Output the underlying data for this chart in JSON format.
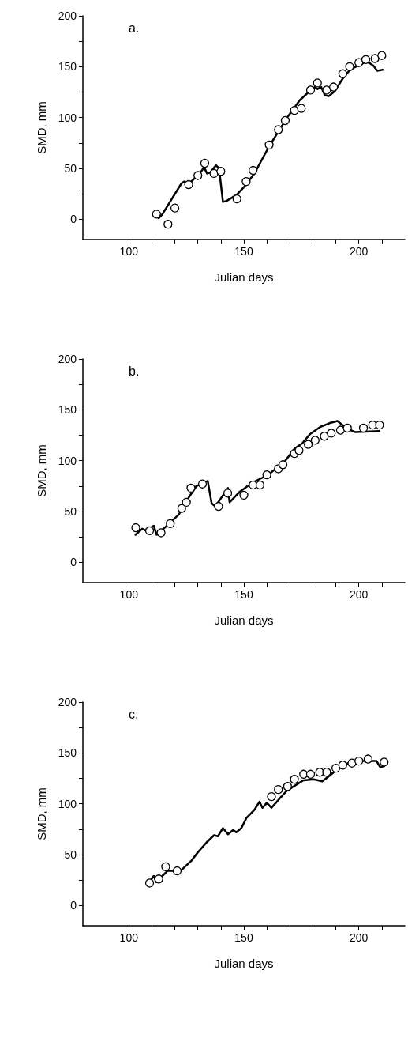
{
  "chart_data": [
    {
      "type": "scatter",
      "title": "a.",
      "xlabel": "Julian days",
      "ylabel": "SMD, mm",
      "xlim": [
        80,
        220
      ],
      "ylim": [
        -20,
        200
      ],
      "xticks": [
        100,
        {
          "value": 110,
          "label": null
        },
        {
          "value": 120,
          "label": null
        },
        {
          "value": 130,
          "label": null
        },
        {
          "value": 140,
          "label": null
        },
        150,
        {
          "value": 160,
          "label": null
        },
        {
          "value": 170,
          "label": null
        },
        {
          "value": 180,
          "label": null
        },
        {
          "value": 190,
          "label": null
        },
        200,
        {
          "value": 210,
          "label": null
        }
      ],
      "yticks": [
        0,
        {
          "value": 25,
          "label": null
        },
        50,
        {
          "value": 75,
          "label": null
        },
        100,
        {
          "value": 125,
          "label": null
        },
        150,
        {
          "value": 175,
          "label": null
        },
        200
      ],
      "grid": false,
      "series": [
        {
          "type": "line",
          "color": "#000000",
          "marker": "none",
          "line_style": "solid",
          "x": [
            113,
            114.6,
            122.8,
            123.9,
            126.1,
            130.5,
            132.7,
            134,
            135.4,
            137.9,
            139.2,
            140.9,
            142.5,
            146.9,
            150.2,
            154.6,
            158.9,
            161.1,
            165.5,
            168.8,
            174.3,
            178.7,
            180.9,
            182,
            183.6,
            185.2,
            186.9,
            189.6,
            192.9,
            196.2,
            199.5,
            203.3,
            205,
            206.3,
            208,
            210.4
          ],
          "values": [
            1,
            5,
            35,
            37,
            35,
            44,
            51,
            45,
            46,
            53,
            50,
            17,
            18,
            24,
            32,
            45,
            63,
            72,
            88,
            100,
            117,
            126,
            130,
            128,
            130,
            122,
            121,
            126,
            138,
            147,
            151,
            155,
            153,
            151,
            146,
            147
          ]
        },
        {
          "color": "#000000",
          "marker": "circle",
          "x": [
            112,
            117,
            120,
            126,
            130,
            133,
            137,
            140,
            147,
            151,
            154,
            161,
            165,
            168,
            172,
            175,
            179,
            182,
            186,
            189,
            193,
            196,
            200,
            203,
            207,
            210
          ],
          "values": [
            5,
            -5,
            11,
            34,
            43,
            55,
            45,
            47,
            20,
            37,
            48,
            73,
            88,
            97,
            107,
            109,
            127,
            134,
            127,
            130,
            143,
            150,
            154,
            157,
            158,
            161
          ]
        }
      ]
    },
    {
      "type": "scatter",
      "title": "b.",
      "xlabel": "Julian days",
      "ylabel": "SMD, mm",
      "xlim": [
        80,
        220
      ],
      "ylim": [
        -20,
        200
      ],
      "xticks": [
        100,
        {
          "value": 110,
          "label": null
        },
        {
          "value": 120,
          "label": null
        },
        {
          "value": 130,
          "label": null
        },
        {
          "value": 140,
          "label": null
        },
        150,
        {
          "value": 160,
          "label": null
        },
        {
          "value": 170,
          "label": null
        },
        {
          "value": 180,
          "label": null
        },
        {
          "value": 190,
          "label": null
        },
        200,
        {
          "value": 210,
          "label": null
        }
      ],
      "yticks": [
        0,
        {
          "value": 25,
          "label": null
        },
        50,
        {
          "value": 75,
          "label": null
        },
        100,
        {
          "value": 125,
          "label": null
        },
        150,
        {
          "value": 175,
          "label": null
        },
        200
      ],
      "grid": false,
      "series": [
        {
          "type": "line",
          "color": "#000000",
          "marker": "none",
          "line_style": "solid",
          "x": [
            102.9,
            105.8,
            107.5,
            110.8,
            112.1,
            114.6,
            118.4,
            121.7,
            126.1,
            129.4,
            134.3,
            136,
            137.6,
            143.1,
            143.8,
            148,
            153.5,
            157.9,
            161.1,
            167.7,
            172.1,
            175.4,
            178.7,
            183.1,
            187.4,
            190.7,
            192.9,
            195.6,
            198.4,
            209
          ],
          "values": [
            27,
            33,
            31,
            36,
            27,
            32,
            40,
            47,
            64,
            75,
            80,
            58,
            55,
            73,
            59,
            69,
            78,
            83,
            87,
            99,
            112,
            117,
            126,
            133,
            137,
            139,
            135,
            131,
            128,
            129
          ]
        },
        {
          "color": "#000000",
          "marker": "circle",
          "x": [
            103,
            109,
            114,
            118,
            123,
            125,
            127,
            132,
            139,
            143,
            150,
            154,
            157,
            160,
            165,
            167,
            172,
            174,
            178,
            181,
            185,
            188,
            192,
            195,
            202,
            206,
            209
          ],
          "values": [
            34,
            31,
            29,
            38,
            53,
            59,
            73,
            77,
            55,
            68,
            66,
            76,
            76,
            86,
            92,
            96,
            107,
            110,
            116,
            120,
            124,
            127,
            130,
            132,
            132,
            135,
            135
          ]
        }
      ]
    },
    {
      "type": "scatter",
      "title": "c.",
      "xlabel": "Julian days",
      "ylabel": "SMD, mm",
      "xlim": [
        80,
        220
      ],
      "ylim": [
        -20,
        200
      ],
      "xticks": [
        100,
        {
          "value": 110,
          "label": null
        },
        {
          "value": 120,
          "label": null
        },
        {
          "value": 130,
          "label": null
        },
        {
          "value": 140,
          "label": null
        },
        150,
        {
          "value": 160,
          "label": null
        },
        {
          "value": 170,
          "label": null
        },
        {
          "value": 180,
          "label": null
        },
        {
          "value": 190,
          "label": null
        },
        200,
        {
          "value": 210,
          "label": null
        }
      ],
      "yticks": [
        0,
        {
          "value": 25,
          "label": null
        },
        50,
        {
          "value": 75,
          "label": null
        },
        100,
        {
          "value": 125,
          "label": null
        },
        150,
        {
          "value": 175,
          "label": null
        },
        200
      ],
      "grid": false,
      "series": [
        {
          "type": "line",
          "color": "#000000",
          "marker": "none",
          "line_style": "solid",
          "x": [
            108.9,
            110.8,
            111.9,
            114.1,
            116.8,
            119,
            121.2,
            123.9,
            127.2,
            129.9,
            133.8,
            137,
            138.7,
            140.9,
            143.1,
            145.3,
            146.7,
            148.9,
            151.1,
            154.6,
            156.8,
            158.1,
            160,
            162,
            165.5,
            168.8,
            175.9,
            180.3,
            184.1,
            186.9,
            191.8,
            196.2,
            200.6,
            207.7,
            209.3,
            211
          ],
          "values": [
            23,
            29,
            23,
            28,
            34,
            34,
            31,
            37,
            44,
            52,
            62,
            69,
            68,
            76,
            70,
            74,
            72,
            76,
            86,
            94,
            102,
            96,
            101,
            96,
            105,
            113,
            123,
            124,
            122,
            127,
            136,
            141,
            142,
            142,
            136,
            137
          ]
        },
        {
          "color": "#000000",
          "marker": "circle",
          "x": [
            109,
            113,
            116,
            121,
            162,
            165,
            169,
            172,
            176,
            179,
            183,
            186,
            190,
            193,
            197,
            200,
            204,
            211
          ],
          "values": [
            22,
            26,
            38,
            34,
            107,
            114,
            117,
            124,
            129,
            129,
            131,
            131,
            135,
            138,
            140,
            142,
            144,
            141
          ]
        }
      ]
    }
  ]
}
